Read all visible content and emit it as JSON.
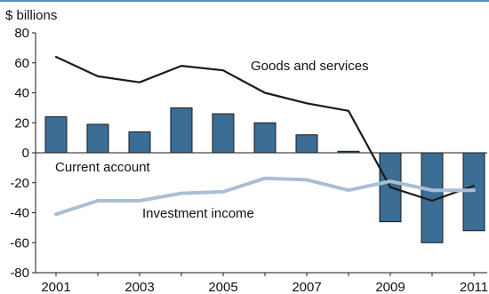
{
  "chart_data": {
    "type": "bar",
    "ylabel": "$ billions",
    "ylim": [
      -80,
      80
    ],
    "yticks": [
      80,
      60,
      40,
      20,
      0,
      -20,
      -40,
      -60,
      -80
    ],
    "xticks": [
      "2001",
      "2003",
      "2005",
      "2007",
      "2009",
      "2011"
    ],
    "categories": [
      "2001",
      "2002",
      "2003",
      "2004",
      "2005",
      "2006",
      "2007",
      "2008",
      "2009",
      "2010",
      "2011"
    ],
    "grid": false,
    "series": [
      {
        "name": "Current account",
        "kind": "bar",
        "color": "#3b6d95",
        "values": [
          24,
          19,
          14,
          30,
          26,
          20,
          12,
          1,
          -46,
          -60,
          -52
        ]
      },
      {
        "name": "Goods and services",
        "kind": "line",
        "color": "#1a1a1a",
        "values": [
          64,
          51,
          47,
          58,
          55,
          40,
          33,
          28,
          -23,
          -32,
          -22
        ]
      },
      {
        "name": "Investment income",
        "kind": "line",
        "color": "#a8bfd6",
        "values": [
          -41,
          -32,
          -32,
          -27,
          -26,
          -17,
          -18,
          -25,
          -19,
          -25,
          -25
        ]
      }
    ]
  },
  "colors": {
    "top_rule": "#5a8fb5",
    "axis": "#1a1a1a"
  }
}
